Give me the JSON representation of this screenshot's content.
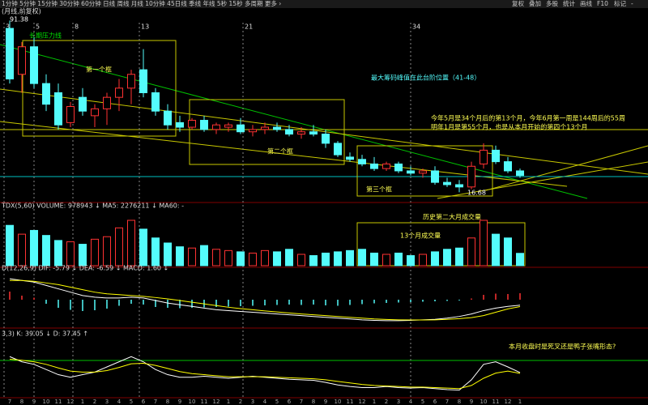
{
  "toolbar": {
    "left": "1分钟  5分钟  15分钟  30分钟  60分钟  日线  周线  月线  10分钟  45日线  季线  年线  5秒  15秒  多周期  更多 ›",
    "right": [
      "复权",
      "叠加",
      "多股",
      "统计",
      "画线",
      "F10",
      "标记",
      "-"
    ]
  },
  "header": "(月线,前复权)",
  "annotations": {
    "pressure": "长期压力线",
    "box1": "第一个框",
    "box2": "第二个框",
    "box3": "第三个框",
    "chips": "最大筹码峰值在此台阶位置（41-48）",
    "note1": "今年5月是34个月后的第13个月，今年6月第一周是144周后的55周",
    "note2": "明年1月是第55个月，也是从本月开始的第四个13个月",
    "high": "91.38",
    "low": "16.68",
    "vol1": "历史第二大月成交量",
    "vol2": "13个月成交量",
    "kdj": "本月收盘时是死叉还是鸭子张嘴形态?",
    "cycles": [
      "3",
      "5",
      "8",
      "13",
      "21",
      "34"
    ]
  },
  "chart_data": [
    {
      "type": "candlestick",
      "ylim": [
        14,
        94
      ],
      "categories": [
        "7",
        "8",
        "9",
        "10",
        "11",
        "12",
        "1",
        "2",
        "3",
        "4",
        "5",
        "6",
        "7",
        "8",
        "9",
        "10",
        "11",
        "12",
        "1",
        "2",
        "3",
        "4",
        "5",
        "6",
        "7",
        "8",
        "9",
        "10",
        "11",
        "12",
        "1",
        "2",
        "3",
        "4",
        "5",
        "6",
        "7",
        "8",
        "9",
        "10",
        "11",
        "12",
        "1"
      ],
      "open": [
        88,
        68,
        80,
        64,
        60,
        47,
        58,
        50,
        53,
        58,
        62,
        70,
        60,
        52,
        47,
        45,
        48,
        44,
        45,
        46,
        43,
        44,
        45,
        44,
        42,
        43,
        42,
        38,
        32,
        31,
        29,
        27,
        29,
        26,
        25,
        26,
        21,
        20,
        19,
        29,
        35,
        30,
        26
      ],
      "high": [
        91.38,
        82,
        84,
        68,
        64,
        56,
        62,
        55,
        60,
        66,
        70,
        79,
        62,
        55,
        50,
        49,
        50,
        47,
        47,
        49,
        46,
        47,
        47,
        46,
        45,
        46,
        44,
        39,
        34,
        33,
        32,
        30,
        30,
        28,
        27,
        28,
        23,
        22,
        30,
        38,
        37,
        32,
        27
      ],
      "low": [
        64,
        60,
        62,
        52,
        44,
        45,
        50,
        45,
        46,
        52,
        55,
        58,
        50,
        44,
        43,
        44,
        43,
        42,
        43,
        42,
        41,
        42,
        43,
        41,
        40,
        41,
        36,
        32,
        30,
        28,
        26,
        26,
        25,
        24,
        23,
        20,
        19,
        16.68,
        18,
        27,
        29,
        25,
        23
      ],
      "close": [
        66,
        80,
        64,
        55,
        46,
        54,
        52,
        53,
        58,
        62,
        68,
        60,
        52,
        46,
        45,
        48,
        44,
        46,
        46,
        43,
        44,
        45,
        44,
        42,
        43,
        42,
        38,
        33,
        31,
        29,
        27,
        29,
        26,
        25,
        26,
        21,
        20,
        19,
        28,
        35,
        30,
        26,
        24
      ],
      "up_color": "#ff3232",
      "down_color": "#54fcfc"
    },
    {
      "type": "bar",
      "title": "TDX(5,60)  VOLUME: 978943 ↓  MA5: 2276211 ↓  MA60: -",
      "ylim": [
        0,
        4500000
      ],
      "values": [
        3200000,
        2500000,
        2800000,
        2400000,
        2000000,
        1900000,
        1700000,
        2100000,
        2300000,
        3000000,
        3600000,
        2900000,
        2200000,
        1800000,
        1500000,
        1400000,
        1600000,
        1300000,
        1200000,
        1100000,
        1000000,
        1200000,
        1100000,
        1300000,
        900000,
        800000,
        1000000,
        1100000,
        1200000,
        1300000,
        1000000,
        900000,
        1000000,
        800000,
        900000,
        1100000,
        1300000,
        1400000,
        2200000,
        3600000,
        2500000,
        2200000,
        978943
      ]
    },
    {
      "type": "macd",
      "title": "D(12,26,9)  DIF: -5.79 ↓  DEA: -6.59 ↓  MACD: 1.60 ↓",
      "ylim": [
        -17,
        12
      ],
      "y2lim": [
        -6,
        6
      ],
      "series": [
        {
          "name": "DIF",
          "color": "#ffffff",
          "values": [
            10,
            9,
            8,
            6,
            4,
            2,
            0,
            -1,
            -1.5,
            -1.5,
            -1,
            -1.5,
            -3,
            -4.5,
            -5.5,
            -6.5,
            -7.5,
            -8.5,
            -9,
            -9.5,
            -10,
            -10.5,
            -11,
            -11.5,
            -12,
            -12.5,
            -13,
            -13.5,
            -14,
            -14.5,
            -14.8,
            -15,
            -15,
            -14.8,
            -14.5,
            -14.2,
            -13.5,
            -12.5,
            -11,
            -9,
            -7.5,
            -6.5,
            -5.79
          ]
        },
        {
          "name": "DEA",
          "color": "#ffff00",
          "values": [
            9,
            9,
            8.5,
            7.5,
            6.5,
            5,
            3.5,
            2,
            1,
            0.5,
            0,
            -0.5,
            -1.2,
            -2,
            -3,
            -4,
            -5,
            -6,
            -7,
            -7.8,
            -8.5,
            -9.2,
            -9.8,
            -10.4,
            -11,
            -11.5,
            -12,
            -12.5,
            -13,
            -13.5,
            -14,
            -14.3,
            -14.5,
            -14.6,
            -14.6,
            -14.5,
            -14.2,
            -13.8,
            -13.2,
            -12,
            -10,
            -8,
            -6.59
          ]
        },
        {
          "name": "MACD",
          "axis": "y2",
          "values": [
            2,
            1,
            0.5,
            -1,
            -2,
            -2.5,
            -2.8,
            -2.6,
            -2.2,
            -1.5,
            -1,
            -1.2,
            -1.8,
            -2,
            -2.1,
            -2,
            -1.9,
            -1.8,
            -1.7,
            -1.6,
            -1.5,
            -1.4,
            -1.3,
            -1.2,
            -1.3,
            -1.2,
            -1.4,
            -1.5,
            -1.3,
            -1.1,
            -0.9,
            -0.8,
            -0.7,
            -0.6,
            -0.5,
            -0.4,
            -0.3,
            -0.2,
            0.3,
            1.2,
            1.5,
            1.4,
            1.6
          ]
        }
      ]
    },
    {
      "type": "line",
      "title": "3,3)  K: 39.05 ↓  D: 37.45 ↑",
      "ylim": [
        -5,
        105
      ],
      "series": [
        {
          "name": "K",
          "color": "#ffffff",
          "values": [
            70,
            60,
            55,
            45,
            35,
            30,
            35,
            40,
            50,
            60,
            70,
            60,
            45,
            35,
            30,
            30,
            32,
            30,
            28,
            30,
            32,
            30,
            28,
            26,
            25,
            24,
            20,
            15,
            12,
            10,
            10,
            12,
            10,
            9,
            10,
            8,
            6,
            5,
            25,
            55,
            60,
            50,
            39.05
          ]
        },
        {
          "name": "D",
          "color": "#ffff00",
          "values": [
            65,
            63,
            60,
            55,
            48,
            42,
            40,
            40,
            43,
            49,
            56,
            57,
            53,
            47,
            41,
            37,
            35,
            33,
            31,
            31,
            31,
            31,
            30,
            29,
            28,
            27,
            25,
            22,
            19,
            16,
            14,
            13,
            12,
            11,
            11,
            10,
            9,
            8,
            14,
            28,
            38,
            42,
            37.45
          ]
        }
      ]
    }
  ]
}
